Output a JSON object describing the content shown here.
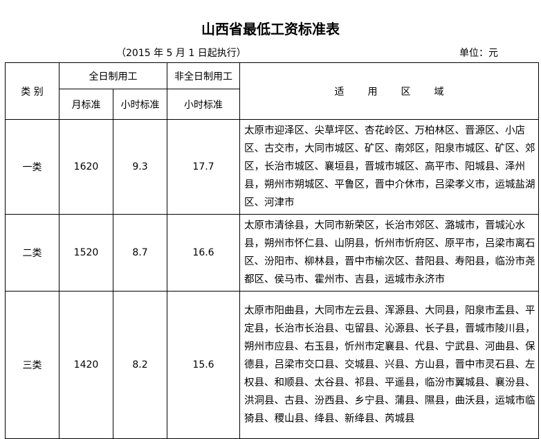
{
  "title": "山西省最低工资标准表",
  "subtitle": "（2015 年 5 月 1 日起执行）",
  "unit": "单位：元",
  "headers": {
    "category": "类 别",
    "fulltime": "全日制用工",
    "parttime": "非全日制用工",
    "monthly": "月标准",
    "hourly": "小时标准",
    "parttime_hourly": "小时标准",
    "area": "适用区域"
  },
  "rows": [
    {
      "category": "一类",
      "monthly": "1620",
      "hourly": "9.3",
      "parttime_hourly": "17.7",
      "area": "太原市迎泽区、尖草坪区、杏花岭区、万柏林区、晋源区、小店区、古交市，大同市城区、矿区、南郊区，阳泉市城区、矿区、郊区，长治市城区、襄垣县，晋城市城区、高平市、阳城县、泽州县，朔州市朔城区、平鲁区，晋中介休市，吕梁孝义市，运城盐湖区、河津市"
    },
    {
      "category": "二类",
      "monthly": "1520",
      "hourly": "8.7",
      "parttime_hourly": "16.6",
      "area": "太原市清徐县，大同市新荣区，长治市郊区、潞城市，晋城沁水县，朔州市怀仁县、山阴县，忻州市忻府区、原平市，吕梁市离石区、汾阳市、柳林县，晋中市榆次区、昔阳县、寿阳县，临汾市尧都区、侯马市、霍州市、吉县，运城市永济市"
    },
    {
      "category": "三类",
      "monthly": "1420",
      "hourly": "8.2",
      "parttime_hourly": "15.6",
      "area": "太原市阳曲县，大同市左云县、浑源县、大同县，阳泉市盂县、平定县，长治市长治县、屯留县、沁源县、长子县，晋城市陵川县，朔州市应县、右玉县，忻州市定襄县、代县、宁武县、河曲县、保德县，吕梁市交口县、交城县、兴县、方山县，晋中市灵石县、左权县、和顺县、太谷县、祁县、平遥县，临汾市翼城县、襄汾县、洪洞县、古县、汾西县、乡宁县、蒲县、隰县，曲沃县，运城市临猗县、稷山县、绛县、新绛县、芮城县"
    }
  ]
}
